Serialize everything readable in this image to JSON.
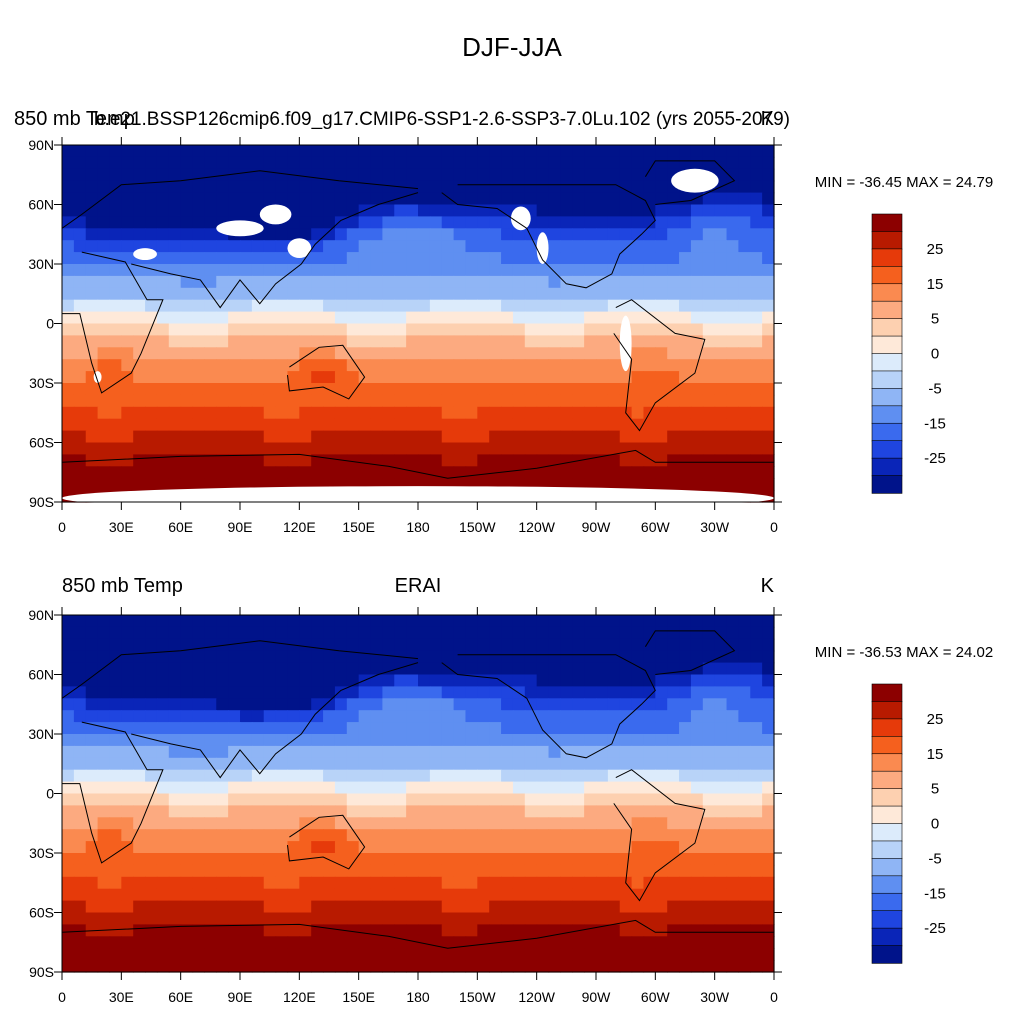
{
  "figure": {
    "title": "DJF-JJA"
  },
  "x_tick_labels": [
    "0",
    "30E",
    "60E",
    "90E",
    "120E",
    "150E",
    "180",
    "150W",
    "120W",
    "90W",
    "60W",
    "30W",
    "0"
  ],
  "y_tick_labels": [
    "90N",
    "60N",
    "30N",
    "0",
    "30S",
    "60S",
    "90S"
  ],
  "colorbar": {
    "labels": [
      "25",
      "15",
      "5",
      "0",
      "-5",
      "-15",
      "-25"
    ],
    "colors": [
      "#8c0000",
      "#b81a00",
      "#e63a0a",
      "#f5601e",
      "#fa8a50",
      "#fcaa80",
      "#fdd0b0",
      "#fee9d9",
      "#dcebfb",
      "#b8d3f8",
      "#8fb5f5",
      "#5f8ff1",
      "#3a6aee",
      "#1f45e0",
      "#0a25b8",
      "#00138a"
    ]
  },
  "panels": [
    {
      "left_title": "850 mb Temp",
      "center_title": "b.e21.BSSP126cmip6.f09_g17.CMIP6-SSP1-2.6-SSP3-7.0Lu.102 (yrs 2055-2079)",
      "units": "K",
      "min_max": "MIN = -36.45 MAX =  24.79",
      "data_range": [
        -36.45,
        24.79
      ],
      "has_missing_data": true
    },
    {
      "left_title": "850 mb Temp",
      "center_title": "ERAI",
      "units": "K",
      "min_max": "MIN = -36.53 MAX =  24.02",
      "data_range": [
        -36.53,
        24.02
      ],
      "has_missing_data": false
    }
  ]
}
